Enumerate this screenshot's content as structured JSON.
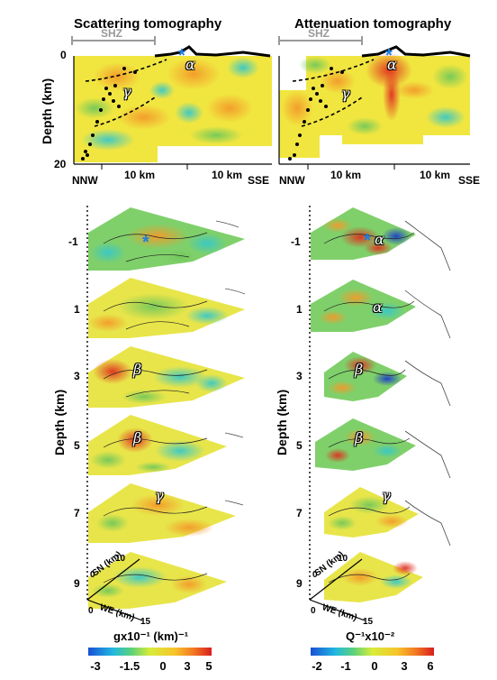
{
  "titles": {
    "left": "Scattering tomography",
    "right": "Attenuation tomography"
  },
  "cross_section": {
    "shz": "SHZ",
    "depth_label": "Depth (km)",
    "depth_top": "0",
    "depth_bottom": "20",
    "nnw": "NNW",
    "sse": "SSE",
    "scale_10km": "10 km",
    "alpha": "α",
    "gamma": "γ"
  },
  "slices": {
    "depth_label": "Depth (km)",
    "depths": [
      "-1",
      "1",
      "3",
      "5",
      "7",
      "9"
    ],
    "left_greek": [
      "",
      "",
      "β",
      "β",
      "γ",
      ""
    ],
    "right_greek": [
      "α",
      "α",
      "β",
      "β",
      "γ",
      ""
    ],
    "sn_label": "SN (km)",
    "we_label": "WE (km)",
    "sn_ticks": [
      "0",
      "10"
    ],
    "we_ticks": [
      "0",
      "15"
    ]
  },
  "colorbars": {
    "left": {
      "label": "gx10⁻¹ (km)⁻¹",
      "ticks": [
        "-3",
        "-1.5",
        "0",
        "3",
        "5"
      ]
    },
    "right": {
      "label": "Q⁻¹x10⁻²",
      "ticks": [
        "-2",
        "-1",
        "0",
        "3",
        "6"
      ]
    }
  },
  "colors": {
    "star": "#1e7fe0",
    "red": "#e53020",
    "orange": "#f7a32a",
    "yellow": "#f4ea3a",
    "green": "#7dc85a",
    "cyan": "#40c8d0",
    "blue": "#2050c0"
  }
}
